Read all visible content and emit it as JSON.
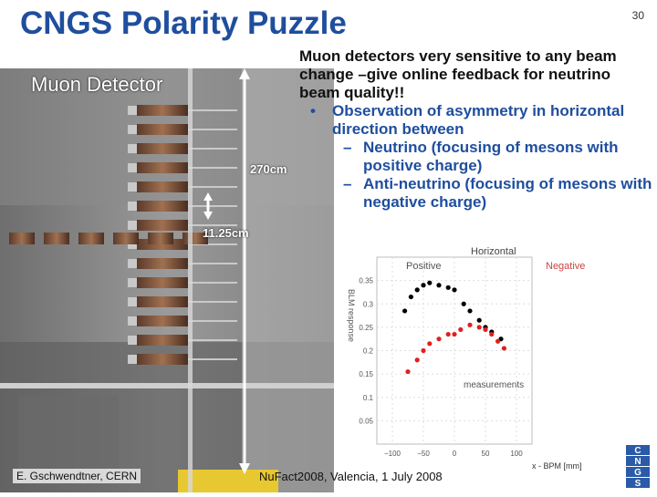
{
  "slide": {
    "title": "CNGS Polarity Puzzle",
    "page_number": "30",
    "footer_left": "E. Gschwendtner, CERN",
    "footer_center": "NuFact2008, Valencia, 1 July 2008",
    "logo_letters": [
      "C",
      "N",
      "G",
      "S"
    ]
  },
  "photo": {
    "label": "Muon Detector",
    "dim_height": "270cm",
    "dim_spacing": "11.25cm"
  },
  "text": {
    "intro": "Muon detectors very sensitive to any beam change –give online feedback for neutrino beam quality!!",
    "bullet_marker": "•",
    "bullet": "Observation of asymmetry in horizontal direction between",
    "sub_marker": "–",
    "sub1": "Neutrino (focusing of mesons with positive charge)",
    "sub2": "Anti-neutrino (focusing of mesons with negative charge)"
  },
  "chart_data": {
    "type": "scatter",
    "title": "Horizontal",
    "ylabel": "BLM response",
    "xlabel": "x - BPM [mm]",
    "annotation": "measurements",
    "legend_left": "Positive",
    "legend_right": "Negative",
    "xticks": [
      -100,
      -50,
      0,
      50,
      100
    ],
    "yticks": [
      0.05,
      0.1,
      0.15,
      0.2,
      0.25,
      0.3,
      0.35
    ],
    "xlim": [
      -125,
      125
    ],
    "ylim": [
      0.0,
      0.4
    ],
    "colors": {
      "positive": "#000000",
      "negative": "#e02020",
      "title": "#444444",
      "legend_right": "#d04040"
    },
    "series": [
      {
        "name": "Positive",
        "points": [
          [
            -80,
            0.285
          ],
          [
            -70,
            0.315
          ],
          [
            -60,
            0.33
          ],
          [
            -50,
            0.34
          ],
          [
            -40,
            0.345
          ],
          [
            -25,
            0.34
          ],
          [
            -10,
            0.335
          ],
          [
            0,
            0.33
          ],
          [
            15,
            0.3
          ],
          [
            25,
            0.285
          ],
          [
            40,
            0.265
          ],
          [
            50,
            0.25
          ],
          [
            60,
            0.24
          ],
          [
            75,
            0.225
          ]
        ]
      },
      {
        "name": "Negative",
        "points": [
          [
            -75,
            0.155
          ],
          [
            -60,
            0.18
          ],
          [
            -50,
            0.2
          ],
          [
            -40,
            0.215
          ],
          [
            -25,
            0.225
          ],
          [
            -10,
            0.235
          ],
          [
            0,
            0.235
          ],
          [
            10,
            0.245
          ],
          [
            25,
            0.255
          ],
          [
            40,
            0.25
          ],
          [
            50,
            0.245
          ],
          [
            60,
            0.235
          ],
          [
            70,
            0.22
          ],
          [
            80,
            0.205
          ]
        ]
      }
    ]
  }
}
